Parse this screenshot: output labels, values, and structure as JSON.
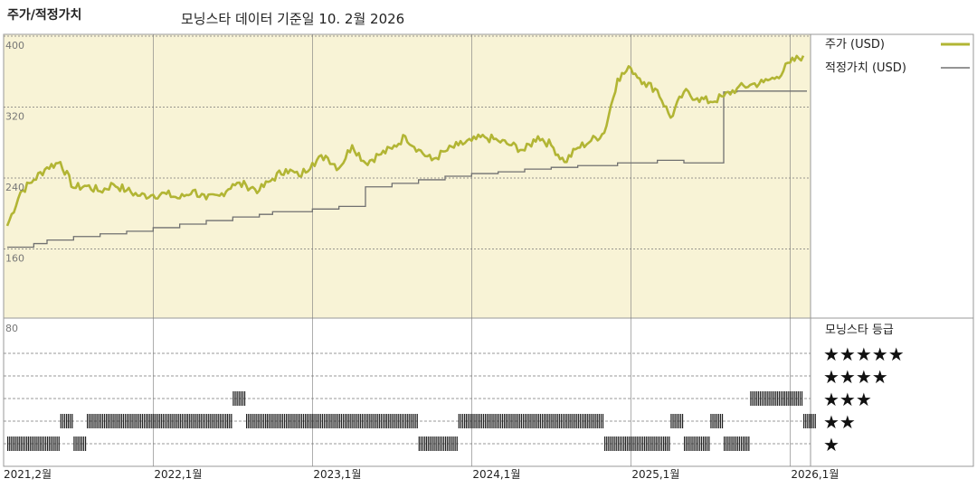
{
  "header": {
    "title": "주가/적정가치",
    "subtitle": "모닝스타 데이터 기준일 10. 2월 2026"
  },
  "legend": {
    "price_label": "주가 (USD)",
    "fair_value_label": "적정가치 (USD)",
    "rating_title": "모닝스타 등급",
    "star_rows": [
      "★★★★★",
      "★★★★",
      "★★★",
      "★★",
      "★"
    ]
  },
  "colors": {
    "panel_bg": "#f8f3d6",
    "price_line": "#b2b534",
    "fair_value_line": "#707070",
    "rating_bar": "#222222",
    "grid": "#777777"
  },
  "chart_data": {
    "type": "line",
    "title": "주가/적정가치",
    "x_tick_labels": [
      "2021,2월",
      "2022,1월",
      "2023,1월",
      "2024,1월",
      "2025,1월",
      "2026,1월"
    ],
    "y_tick_labels": [
      "400",
      "320",
      "240",
      "160",
      "80"
    ],
    "ylim": [
      80,
      400
    ],
    "grid": true,
    "legend_position": "right",
    "series": [
      {
        "name": "주가 (USD)",
        "x": [
          "2021-02",
          "2021-03",
          "2021-04",
          "2021-05",
          "2021-06",
          "2021-07",
          "2021-08",
          "2021-09",
          "2021-10",
          "2021-11",
          "2021-12",
          "2022-01",
          "2022-02",
          "2022-03",
          "2022-04",
          "2022-05",
          "2022-06",
          "2022-07",
          "2022-08",
          "2022-09",
          "2022-10",
          "2022-11",
          "2022-12",
          "2023-01",
          "2023-02",
          "2023-03",
          "2023-04",
          "2023-05",
          "2023-06",
          "2023-07",
          "2023-08",
          "2023-09",
          "2023-10",
          "2023-11",
          "2023-12",
          "2024-01",
          "2024-02",
          "2024-03",
          "2024-04",
          "2024-05",
          "2024-06",
          "2024-07",
          "2024-08",
          "2024-09",
          "2024-10",
          "2024-11",
          "2024-12",
          "2025-01",
          "2025-02",
          "2025-03",
          "2025-04",
          "2025-05",
          "2025-06",
          "2025-07",
          "2025-08",
          "2025-09",
          "2025-10",
          "2025-11",
          "2025-12",
          "2026-01",
          "2026-02"
        ],
        "values": [
          184,
          222,
          236,
          250,
          256,
          227,
          229,
          223,
          231,
          224,
          218,
          219,
          220,
          215,
          224,
          214,
          218,
          231,
          230,
          224,
          237,
          248,
          240,
          255,
          263,
          249,
          275,
          255,
          264,
          271,
          285,
          270,
          258,
          268,
          275,
          280,
          284,
          280,
          275,
          269,
          285,
          275,
          256,
          272,
          280,
          289,
          350,
          362,
          346,
          337,
          306,
          335,
          328,
          324,
          330,
          339,
          343,
          346,
          352,
          368,
          376
        ]
      },
      {
        "name": "적정가치 (USD)",
        "x": [
          "2021-02",
          "2021-03",
          "2021-04",
          "2021-05",
          "2021-06",
          "2021-07",
          "2021-08",
          "2021-09",
          "2021-10",
          "2021-11",
          "2021-12",
          "2022-01",
          "2022-02",
          "2022-03",
          "2022-04",
          "2022-05",
          "2022-06",
          "2022-07",
          "2022-08",
          "2022-09",
          "2022-10",
          "2022-11",
          "2022-12",
          "2023-01",
          "2023-02",
          "2023-03",
          "2023-04",
          "2023-05",
          "2023-06",
          "2023-07",
          "2023-08",
          "2023-09",
          "2023-10",
          "2023-11",
          "2023-12",
          "2024-01",
          "2024-02",
          "2024-03",
          "2024-04",
          "2024-05",
          "2024-06",
          "2024-07",
          "2024-08",
          "2024-09",
          "2024-10",
          "2024-11",
          "2024-12",
          "2025-01",
          "2025-02",
          "2025-03",
          "2025-04",
          "2025-05",
          "2025-06",
          "2025-07",
          "2025-08",
          "2025-09",
          "2025-10",
          "2025-11",
          "2025-12",
          "2026-01",
          "2026-02"
        ],
        "values": [
          160,
          160,
          164,
          168,
          168,
          172,
          172,
          175,
          175,
          178,
          178,
          182,
          182,
          186,
          186,
          190,
          190,
          194,
          194,
          197,
          200,
          200,
          200,
          203,
          203,
          206,
          206,
          228,
          228,
          232,
          232,
          236,
          236,
          240,
          240,
          243,
          243,
          245,
          245,
          248,
          248,
          250,
          250,
          252,
          252,
          252,
          255,
          255,
          255,
          258,
          258,
          255,
          255,
          255,
          335,
          336,
          336,
          336,
          336,
          336,
          336
        ]
      }
    ],
    "rating_track": {
      "title": "모닝스타 등급",
      "levels": [
        5,
        4,
        3,
        2,
        1
      ],
      "months": [
        "2021-02",
        "2021-03",
        "2021-04",
        "2021-05",
        "2021-06",
        "2021-07",
        "2021-08",
        "2021-09",
        "2021-10",
        "2021-11",
        "2021-12",
        "2022-01",
        "2022-02",
        "2022-03",
        "2022-04",
        "2022-05",
        "2022-06",
        "2022-07",
        "2022-08",
        "2022-09",
        "2022-10",
        "2022-11",
        "2022-12",
        "2023-01",
        "2023-02",
        "2023-03",
        "2023-04",
        "2023-05",
        "2023-06",
        "2023-07",
        "2023-08",
        "2023-09",
        "2023-10",
        "2023-11",
        "2023-12",
        "2024-01",
        "2024-02",
        "2024-03",
        "2024-04",
        "2024-05",
        "2024-06",
        "2024-07",
        "2024-08",
        "2024-09",
        "2024-10",
        "2024-11",
        "2024-12",
        "2025-01",
        "2025-02",
        "2025-03",
        "2025-04",
        "2025-05",
        "2025-06",
        "2025-07",
        "2025-08",
        "2025-09",
        "2025-10",
        "2025-11",
        "2025-12",
        "2026-01",
        "2026-02"
      ],
      "ratings": [
        1,
        1,
        1,
        1,
        2,
        1,
        2,
        2,
        2,
        2,
        2,
        2,
        2,
        2,
        2,
        2,
        2,
        3,
        2,
        2,
        2,
        2,
        2,
        2,
        2,
        2,
        2,
        2,
        2,
        2,
        2,
        1,
        1,
        1,
        2,
        2,
        2,
        2,
        2,
        2,
        2,
        2,
        2,
        2,
        2,
        1,
        1,
        1,
        1,
        1,
        2,
        1,
        1,
        2,
        1,
        1,
        3,
        3,
        3,
        3,
        2
      ]
    }
  }
}
